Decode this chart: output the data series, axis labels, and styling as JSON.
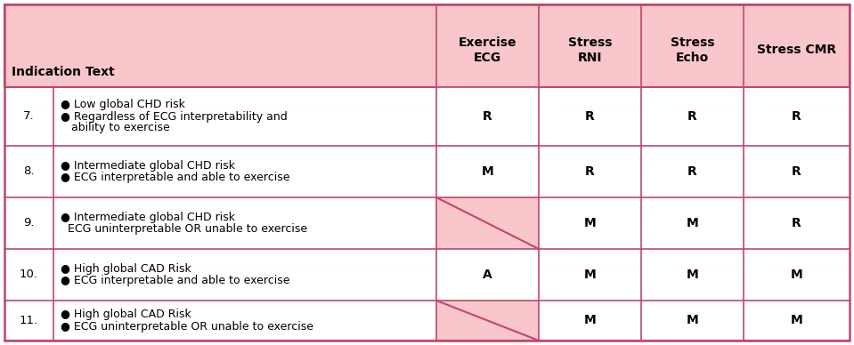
{
  "header_bg": "#f9c6cb",
  "row_bg": "#ffffff",
  "crossed_bg": "#f9c6cb",
  "border_color": "#c0476e",
  "fig_bg": "#ffffff",
  "text_color": "#000000",
  "header_text": "Indication Text",
  "col_headers": [
    "Exercise\nECG",
    "Stress\nRNI",
    "Stress\nEcho",
    "Stress CMR"
  ],
  "rows": [
    {
      "num": "7.",
      "lines": [
        "● Low global CHD risk",
        "● Regardless of ECG interpretability and",
        "   ability to exercise"
      ],
      "vals": [
        "R",
        "R",
        "R",
        "R"
      ],
      "crossed": false
    },
    {
      "num": "8.",
      "lines": [
        "● Intermediate global CHD risk",
        "● ECG interpretable and able to exercise"
      ],
      "vals": [
        "M",
        "R",
        "R",
        "R"
      ],
      "crossed": false
    },
    {
      "num": "9.",
      "lines": [
        "● Intermediate global CHD risk",
        "  ECG uninterpretable OR unable to exercise"
      ],
      "vals": [
        "",
        "M",
        "M",
        "R"
      ],
      "crossed": true
    },
    {
      "num": "10.",
      "lines": [
        "● High global CAD Risk",
        "● ECG interpretable and able to exercise"
      ],
      "vals": [
        "A",
        "M",
        "M",
        "M"
      ],
      "crossed": false
    },
    {
      "num": "11.",
      "lines": [
        "● High global CAD Risk",
        "● ECG uninterpretable OR unable to exercise"
      ],
      "vals": [
        "",
        "M",
        "M",
        "M"
      ],
      "crossed": true
    }
  ],
  "font_size": 9.0,
  "header_font_size": 10.0,
  "num_font_size": 9.5,
  "val_font_size": 10.0
}
